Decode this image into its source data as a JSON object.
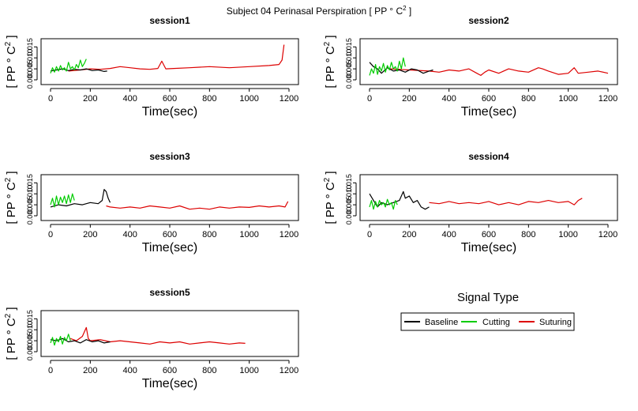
{
  "figure": {
    "title_main": "Subject 04 Perinasal Perspiration [ PP ° C",
    "title_sup": "2",
    "title_end": " ]"
  },
  "legend": {
    "title": "Signal Type",
    "entries": [
      {
        "label": "Baseline",
        "color": "#000000"
      },
      {
        "label": "Cutting",
        "color": "#00cc00"
      },
      {
        "label": "Suturing",
        "color": "#dd0000"
      }
    ]
  },
  "chart_data": [
    {
      "type": "line",
      "title": "session1",
      "xlabel": "Time(sec)",
      "ylabel_main": "[ PP ° C",
      "ylabel_sup": "2",
      "ylabel_end": " ]",
      "xlim": [
        0,
        1200
      ],
      "ylim": [
        0,
        0.018
      ],
      "xticks": [
        0,
        200,
        400,
        600,
        800,
        1000,
        1200
      ],
      "yticks": [
        "0.000",
        "0.005",
        "0.010",
        "0.015"
      ],
      "series": [
        {
          "name": "Suturing",
          "color": "#dd0000",
          "x": [
            90,
            150,
            200,
            250,
            300,
            350,
            400,
            450,
            500,
            540,
            560,
            580,
            620,
            700,
            800,
            900,
            1000,
            1100,
            1150,
            1165,
            1175
          ],
          "y": [
            0.004,
            0.0045,
            0.005,
            0.0048,
            0.0052,
            0.006,
            0.0055,
            0.005,
            0.0048,
            0.0052,
            0.0085,
            0.005,
            0.0052,
            0.0055,
            0.006,
            0.0055,
            0.006,
            0.0065,
            0.007,
            0.009,
            0.016
          ]
        },
        {
          "name": "Baseline",
          "color": "#000000",
          "x": [
            0,
            30,
            60,
            90,
            120,
            150,
            180,
            210,
            240,
            270,
            285
          ],
          "y": [
            0.004,
            0.0045,
            0.005,
            0.0042,
            0.0048,
            0.0045,
            0.005,
            0.0042,
            0.0045,
            0.0038,
            0.004
          ]
        },
        {
          "name": "Cutting",
          "color": "#00cc00",
          "x": [
            0,
            10,
            20,
            30,
            40,
            50,
            60,
            70,
            80,
            90,
            100,
            110,
            120,
            130,
            140,
            150,
            160,
            170,
            180
          ],
          "y": [
            0.003,
            0.0055,
            0.0035,
            0.006,
            0.004,
            0.0065,
            0.0045,
            0.0055,
            0.004,
            0.008,
            0.005,
            0.006,
            0.0045,
            0.007,
            0.0055,
            0.009,
            0.006,
            0.0075,
            0.0095
          ]
        }
      ]
    },
    {
      "type": "line",
      "title": "session2",
      "xlabel": "Time(sec)",
      "ylabel_main": "[ PP ° C",
      "ylabel_sup": "2",
      "ylabel_end": " ]",
      "xlim": [
        0,
        1200
      ],
      "ylim": [
        0,
        0.018
      ],
      "xticks": [
        0,
        200,
        400,
        600,
        800,
        1000,
        1200
      ],
      "yticks": [
        "0.000",
        "0.005",
        "0.010",
        "0.015"
      ],
      "series": [
        {
          "name": "Suturing",
          "color": "#dd0000",
          "x": [
            100,
            200,
            300,
            350,
            400,
            450,
            500,
            540,
            560,
            580,
            600,
            650,
            700,
            750,
            800,
            850,
            870,
            900,
            950,
            1000,
            1030,
            1050,
            1100,
            1150,
            1200
          ],
          "y": [
            0.005,
            0.0045,
            0.004,
            0.0035,
            0.0045,
            0.004,
            0.005,
            0.003,
            0.002,
            0.0035,
            0.0045,
            0.003,
            0.005,
            0.004,
            0.0035,
            0.0055,
            0.005,
            0.004,
            0.0025,
            0.003,
            0.0055,
            0.003,
            0.0035,
            0.004,
            0.003
          ]
        },
        {
          "name": "Baseline",
          "color": "#000000",
          "x": [
            0,
            20,
            40,
            60,
            90,
            120,
            150,
            180,
            210,
            240,
            270,
            300,
            320
          ],
          "y": [
            0.008,
            0.006,
            0.005,
            0.003,
            0.0055,
            0.004,
            0.0045,
            0.0035,
            0.005,
            0.0045,
            0.003,
            0.004,
            0.0045
          ]
        },
        {
          "name": "Cutting",
          "color": "#00cc00",
          "x": [
            0,
            10,
            20,
            30,
            40,
            50,
            60,
            70,
            80,
            90,
            100,
            110,
            120,
            130,
            140,
            150,
            160,
            170,
            180
          ],
          "y": [
            0.002,
            0.005,
            0.003,
            0.007,
            0.0025,
            0.006,
            0.004,
            0.0075,
            0.0035,
            0.0065,
            0.0045,
            0.008,
            0.005,
            0.006,
            0.004,
            0.0085,
            0.005,
            0.01,
            0.006
          ]
        }
      ]
    },
    {
      "type": "line",
      "title": "session3",
      "xlabel": "Time(sec)",
      "ylabel_main": "[ PP ° C",
      "ylabel_sup": "2",
      "ylabel_end": " ]",
      "xlim": [
        0,
        1200
      ],
      "ylim": [
        0,
        0.018
      ],
      "xticks": [
        0,
        200,
        400,
        600,
        800,
        1000,
        1200
      ],
      "yticks": [
        "0.000",
        "0.005",
        "0.010",
        "0.015"
      ],
      "series": [
        {
          "name": "Suturing",
          "color": "#dd0000",
          "x": [
            280,
            300,
            350,
            400,
            450,
            500,
            550,
            600,
            650,
            700,
            750,
            800,
            850,
            900,
            950,
            1000,
            1050,
            1100,
            1150,
            1180,
            1195
          ],
          "y": [
            0.0045,
            0.004,
            0.0035,
            0.004,
            0.0035,
            0.0045,
            0.004,
            0.0035,
            0.0045,
            0.003,
            0.0035,
            0.003,
            0.004,
            0.0035,
            0.004,
            0.0038,
            0.0045,
            0.004,
            0.0045,
            0.004,
            0.0065
          ]
        },
        {
          "name": "Baseline",
          "color": "#000000",
          "x": [
            0,
            40,
            80,
            120,
            160,
            200,
            240,
            260,
            270,
            280,
            290,
            300
          ],
          "y": [
            0.004,
            0.005,
            0.0045,
            0.0055,
            0.005,
            0.006,
            0.0055,
            0.007,
            0.012,
            0.011,
            0.008,
            0.006
          ]
        },
        {
          "name": "Cutting",
          "color": "#00cc00",
          "x": [
            0,
            10,
            20,
            30,
            40,
            50,
            60,
            70,
            80,
            90,
            100,
            110,
            120
          ],
          "y": [
            0.005,
            0.008,
            0.004,
            0.009,
            0.005,
            0.0085,
            0.006,
            0.009,
            0.0055,
            0.0095,
            0.006,
            0.01,
            0.007
          ]
        }
      ]
    },
    {
      "type": "line",
      "title": "session4",
      "xlabel": "Time(sec)",
      "ylabel_main": "[ PP ° C",
      "ylabel_sup": "2",
      "ylabel_end": " ]",
      "xlim": [
        0,
        1200
      ],
      "ylim": [
        0,
        0.018
      ],
      "xticks": [
        0,
        200,
        400,
        600,
        800,
        1000,
        1200
      ],
      "yticks": [
        "0.000",
        "0.005",
        "0.010",
        "0.015"
      ],
      "series": [
        {
          "name": "Suturing",
          "color": "#dd0000",
          "x": [
            300,
            350,
            400,
            450,
            500,
            550,
            600,
            650,
            700,
            750,
            800,
            850,
            900,
            950,
            1000,
            1030,
            1050,
            1070
          ],
          "y": [
            0.006,
            0.0055,
            0.0065,
            0.0055,
            0.006,
            0.0055,
            0.0065,
            0.005,
            0.006,
            0.005,
            0.0065,
            0.006,
            0.007,
            0.006,
            0.0065,
            0.005,
            0.007,
            0.008
          ]
        },
        {
          "name": "Baseline",
          "color": "#000000",
          "x": [
            0,
            20,
            40,
            60,
            90,
            120,
            150,
            170,
            180,
            200,
            220,
            240,
            260,
            280,
            300
          ],
          "y": [
            0.01,
            0.007,
            0.004,
            0.006,
            0.005,
            0.006,
            0.007,
            0.011,
            0.008,
            0.009,
            0.006,
            0.007,
            0.004,
            0.003,
            0.004
          ]
        },
        {
          "name": "Cutting",
          "color": "#00cc00",
          "x": [
            0,
            10,
            20,
            30,
            40,
            50,
            60,
            70,
            80,
            90,
            100,
            110,
            120,
            130,
            140
          ],
          "y": [
            0.004,
            0.007,
            0.003,
            0.0065,
            0.004,
            0.007,
            0.005,
            0.006,
            0.004,
            0.0075,
            0.005,
            0.006,
            0.003,
            0.007,
            0.005
          ]
        }
      ]
    },
    {
      "type": "line",
      "title": "session5",
      "xlabel": "Time(sec)",
      "ylabel_main": "[ PP ° C",
      "ylabel_sup": "2",
      "ylabel_end": " ]",
      "xlim": [
        0,
        1200
      ],
      "ylim": [
        0,
        0.018
      ],
      "xticks": [
        0,
        200,
        400,
        600,
        800,
        1000,
        1200
      ],
      "yticks": [
        "0.000",
        "0.005",
        "0.010",
        "0.015"
      ],
      "series": [
        {
          "name": "Suturing",
          "color": "#dd0000",
          "x": [
            100,
            130,
            160,
            180,
            190,
            200,
            250,
            300,
            350,
            400,
            450,
            500,
            550,
            600,
            650,
            700,
            750,
            800,
            850,
            900,
            950,
            980
          ],
          "y": [
            0.006,
            0.005,
            0.007,
            0.011,
            0.006,
            0.005,
            0.0055,
            0.0045,
            0.005,
            0.0045,
            0.004,
            0.0035,
            0.0045,
            0.004,
            0.0045,
            0.0035,
            0.004,
            0.0045,
            0.004,
            0.0035,
            0.004,
            0.0038
          ]
        },
        {
          "name": "Baseline",
          "color": "#000000",
          "x": [
            0,
            30,
            60,
            90,
            120,
            150,
            180,
            210,
            240,
            270,
            300
          ],
          "y": [
            0.0055,
            0.005,
            0.006,
            0.0045,
            0.005,
            0.004,
            0.0055,
            0.0045,
            0.005,
            0.004,
            0.0045
          ]
        },
        {
          "name": "Cutting",
          "color": "#00cc00",
          "x": [
            0,
            10,
            20,
            30,
            40,
            50,
            60,
            70,
            80,
            90,
            100
          ],
          "y": [
            0.004,
            0.0065,
            0.003,
            0.006,
            0.0045,
            0.007,
            0.0035,
            0.0065,
            0.005,
            0.008,
            0.005
          ]
        }
      ]
    }
  ]
}
